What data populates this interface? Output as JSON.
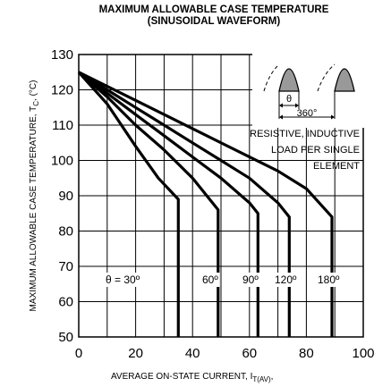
{
  "chart_data": {
    "type": "line",
    "title_line1": "MAXIMUM ALLOWABLE CASE TEMPERATURE",
    "title_line2": "(SINUSOIDAL WAVEFORM)",
    "xlabel": "AVERAGE ON-STATE  CURRENT, I",
    "xlabel_sub": "T(AV)",
    "xlabel_suffix": ",",
    "ylabel": "MAXIMUM ALLOWABLE CASE TEMPERATURE, T",
    "ylabel_sub": "C",
    "ylabel_suffix": ", (°C)",
    "xlim": [
      0,
      100
    ],
    "ylim": [
      50,
      130
    ],
    "x_ticks": [
      0,
      20,
      40,
      60,
      80,
      100
    ],
    "y_ticks": [
      50,
      60,
      70,
      80,
      90,
      100,
      110,
      120,
      130
    ],
    "grid": true,
    "annotation_lines": [
      "RESISTIVE, INDUCTIVE",
      "LOAD PER SINGLE",
      "ELEMENT"
    ],
    "inset": {
      "theta_label": "θ",
      "period_label": "360°"
    },
    "series": [
      {
        "label": "θ = 30º",
        "x": [
          0,
          10,
          20,
          28,
          35,
          35
        ],
        "y": [
          125,
          116,
          104,
          95,
          89,
          50
        ]
      },
      {
        "label": "60º",
        "x": [
          0,
          10,
          20,
          30,
          40,
          49,
          49
        ],
        "y": [
          125,
          118,
          110,
          103,
          95,
          86,
          50
        ]
      },
      {
        "label": "90º",
        "x": [
          0,
          10,
          20,
          30,
          40,
          50,
          60,
          63,
          63
        ],
        "y": [
          125,
          119,
          113,
          107,
          101,
          95,
          88,
          85,
          50
        ]
      },
      {
        "label": "120º",
        "x": [
          0,
          10,
          20,
          30,
          40,
          50,
          60,
          70,
          74,
          74
        ],
        "y": [
          125,
          120,
          115,
          110,
          105,
          100,
          95,
          88,
          84,
          50
        ]
      },
      {
        "label": "180º",
        "x": [
          0,
          20,
          40,
          60,
          70,
          80,
          89,
          89
        ],
        "y": [
          125,
          117,
          109,
          101,
          97,
          92,
          84,
          50
        ]
      }
    ]
  }
}
